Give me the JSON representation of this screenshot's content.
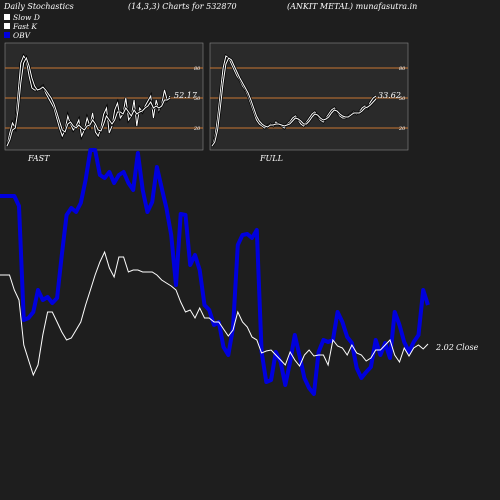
{
  "header": {
    "title": "Daily Stochastics",
    "params": "(14,3,3) Charts for 532870",
    "company": "(ANKIT METAL) munafasutra.in"
  },
  "legend": [
    {
      "label": "Slow  D",
      "color": "#ffffff"
    },
    {
      "label": "Fast K",
      "color": "#ffffff"
    },
    {
      "label": "OBV",
      "color": "#0000dd"
    }
  ],
  "colors": {
    "background": "#1e1e1e",
    "panel": "#2a2a2a",
    "band": "#c87533",
    "obv": "#0000dd",
    "price": "#ffffff"
  },
  "chart_data": [
    {
      "type": "line",
      "name_label": "FAST",
      "value_label": "52.17",
      "ylim": [
        0,
        100
      ],
      "y_ticks": [
        20,
        50,
        80
      ],
      "bands": [
        20,
        50,
        80
      ],
      "x": [
        0,
        1,
        2,
        3,
        4,
        5,
        6,
        7,
        8,
        9,
        10,
        11,
        12,
        13,
        14,
        15,
        16,
        17,
        18,
        19,
        20,
        21,
        22,
        23,
        24,
        25,
        26,
        27,
        28,
        29,
        30,
        31,
        32,
        33,
        34,
        35,
        36,
        37,
        38,
        39,
        40,
        41,
        42,
        43,
        44,
        45,
        46,
        47,
        48,
        49,
        50,
        51,
        52,
        53,
        54,
        55,
        56,
        57,
        58,
        59
      ],
      "series": [
        {
          "values": [
            2,
            15,
            25,
            20,
            55,
            85,
            92,
            88,
            72,
            60,
            58,
            58,
            60,
            62,
            55,
            50,
            45,
            40,
            30,
            20,
            12,
            18,
            32,
            24,
            18,
            22,
            28,
            12,
            18,
            30,
            22,
            35,
            16,
            12,
            20,
            34,
            40,
            15,
            22,
            38,
            45,
            30,
            34,
            50,
            28,
            32,
            48,
            22,
            40,
            36,
            42,
            47,
            52,
            30,
            48,
            38,
            44,
            58,
            48,
            52
          ]
        },
        {
          "values": [
            2,
            8,
            18,
            20,
            38,
            65,
            85,
            90,
            82,
            70,
            62,
            58,
            59,
            61,
            58,
            54,
            50,
            44,
            36,
            27,
            18,
            16,
            24,
            26,
            22,
            20,
            23,
            20,
            18,
            22,
            23,
            28,
            24,
            18,
            17,
            24,
            32,
            28,
            24,
            28,
            36,
            36,
            34,
            40,
            36,
            32,
            38,
            34,
            36,
            37,
            40,
            42,
            46,
            40,
            42,
            40,
            42,
            48,
            48,
            50
          ]
        }
      ]
    },
    {
      "type": "line",
      "name_label": "FULL",
      "value_label": "33.62",
      "ylim": [
        0,
        100
      ],
      "y_ticks": [
        20,
        50,
        80
      ],
      "bands": [
        20,
        50,
        80
      ],
      "x": [
        0,
        1,
        2,
        3,
        4,
        5,
        6,
        7,
        8,
        9,
        10,
        11,
        12,
        13,
        14,
        15,
        16,
        17,
        18,
        19,
        20,
        21,
        22,
        23,
        24,
        25,
        26,
        27,
        28,
        29,
        30,
        31,
        32,
        33,
        34,
        35,
        36,
        37,
        38,
        39,
        40,
        41,
        42,
        43,
        44,
        45,
        46,
        47,
        48,
        49,
        50,
        51,
        52,
        53,
        54,
        55,
        56,
        57,
        58,
        59
      ],
      "series": [
        {
          "values": [
            2,
            10,
            30,
            55,
            80,
            92,
            90,
            84,
            78,
            72,
            68,
            62,
            58,
            52,
            44,
            36,
            28,
            24,
            22,
            20,
            22,
            24,
            22,
            26,
            24,
            22,
            20,
            24,
            26,
            30,
            32,
            28,
            24,
            22,
            26,
            30,
            34,
            36,
            32,
            28,
            26,
            30,
            34,
            38,
            40,
            36,
            32,
            30,
            30,
            32,
            34,
            36,
            34,
            36,
            40,
            42,
            40,
            46,
            50,
            52
          ]
        },
        {
          "values": [
            2,
            6,
            18,
            40,
            65,
            84,
            90,
            88,
            82,
            76,
            70,
            65,
            60,
            55,
            48,
            40,
            32,
            27,
            24,
            22,
            21,
            23,
            23,
            24,
            24,
            23,
            22,
            23,
            24,
            27,
            30,
            29,
            27,
            24,
            24,
            27,
            31,
            34,
            33,
            30,
            28,
            29,
            31,
            35,
            38,
            37,
            34,
            32,
            31,
            31,
            33,
            35,
            35,
            35,
            37,
            40,
            41,
            43,
            46,
            49
          ]
        }
      ]
    },
    {
      "type": "line",
      "close_label": "2.02",
      "close_word": "Close",
      "x": [
        0,
        1,
        2,
        3,
        4,
        5,
        6,
        7,
        8,
        9,
        10,
        11,
        12,
        13,
        14,
        15,
        16,
        17,
        18,
        19,
        20,
        21,
        22,
        23,
        24,
        25,
        26,
        27,
        28,
        29,
        30,
        31,
        32,
        33,
        34,
        35,
        36,
        37,
        38,
        39,
        40,
        41,
        42,
        43,
        44,
        45,
        46,
        47,
        48,
        49,
        50,
        51,
        52,
        53,
        54,
        55,
        56,
        57,
        58,
        59,
        60,
        61,
        62,
        63,
        64,
        65,
        66,
        67,
        68,
        69,
        70,
        71,
        72,
        73,
        74,
        75,
        76,
        77,
        78,
        79,
        80,
        81,
        82,
        83,
        84,
        85,
        86,
        87,
        88,
        89,
        90
      ],
      "series": [
        {
          "name": "OBV",
          "values": [
            196,
            196,
            196,
            196,
            206,
            320,
            318,
            312,
            290,
            300,
            297,
            303,
            298,
            255,
            215,
            208,
            212,
            203,
            180,
            150,
            150,
            175,
            178,
            172,
            183,
            175,
            172,
            183,
            190,
            153,
            190,
            212,
            202,
            167,
            188,
            208,
            235,
            285,
            214,
            215,
            265,
            255,
            270,
            305,
            310,
            325,
            322,
            347,
            355,
            328,
            245,
            235,
            234,
            238,
            230,
            352,
            382,
            380,
            352,
            362,
            385,
            362,
            335,
            356,
            378,
            388,
            394,
            352,
            340,
            342,
            340,
            312,
            322,
            337,
            343,
            368,
            378,
            372,
            367,
            340,
            355,
            343,
            358,
            312,
            325,
            342,
            352,
            342,
            335,
            290,
            305
          ]
        },
        {
          "name": "Price",
          "values": [
            275,
            275,
            275,
            290,
            300,
            345,
            360,
            375,
            365,
            335,
            312,
            312,
            322,
            332,
            340,
            338,
            330,
            322,
            305,
            290,
            275,
            262,
            252,
            268,
            277,
            257,
            257,
            272,
            270,
            270,
            272,
            272,
            272,
            275,
            280,
            283,
            286,
            290,
            302,
            312,
            310,
            318,
            308,
            318,
            318,
            322,
            322,
            329,
            336,
            330,
            312,
            322,
            327,
            337,
            340,
            353,
            351,
            350,
            355,
            360,
            365,
            352,
            360,
            366,
            355,
            350,
            356,
            355,
            355,
            365,
            340,
            346,
            348,
            355,
            345,
            353,
            355,
            361,
            358,
            350,
            350,
            345,
            340,
            355,
            362,
            348,
            356,
            348,
            345,
            349,
            344
          ]
        }
      ]
    }
  ]
}
